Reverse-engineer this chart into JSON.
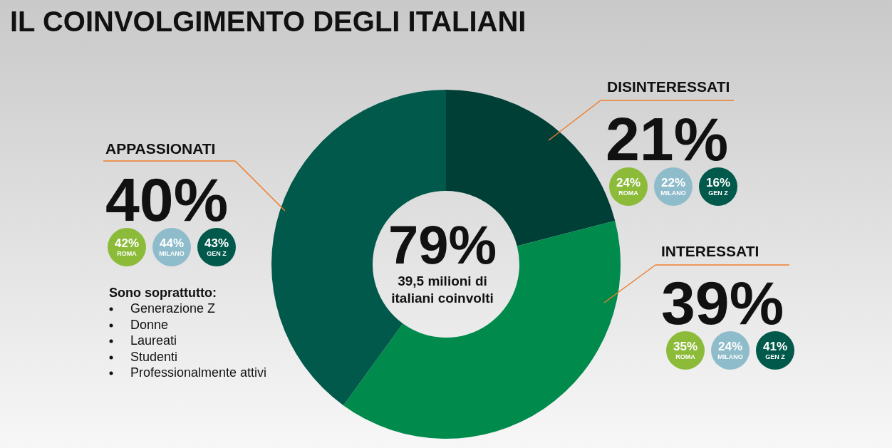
{
  "chart_data": {
    "type": "donut",
    "title": "IL COINVOLGIMENTO DEGLI ITALIANI",
    "categories": [
      "DISINTERESSATI",
      "INTERESSATI",
      "APPASSIONATI"
    ],
    "values": [
      21,
      39,
      40
    ],
    "value_labels": [
      "21%",
      "39%",
      "40%"
    ],
    "colors": [
      "#003f36",
      "#008a4b",
      "#00594a"
    ],
    "annotations": [
      "79%",
      "39,5 milioni di italiani coinvolti",
      "24%",
      "ROMA",
      "22%",
      "MILANO",
      "16%",
      "GEN Z",
      "35%",
      "ROMA",
      "24%",
      "MILANO",
      "41%",
      "GEN Z",
      "42%",
      "ROMA",
      "44%",
      "MILANO",
      "43%",
      "GEN Z",
      "Sono soprattutto:",
      "Generazione Z",
      "Donne",
      "Laureati",
      "Studenti",
      "Professionalmente attivi"
    ]
  }
}
